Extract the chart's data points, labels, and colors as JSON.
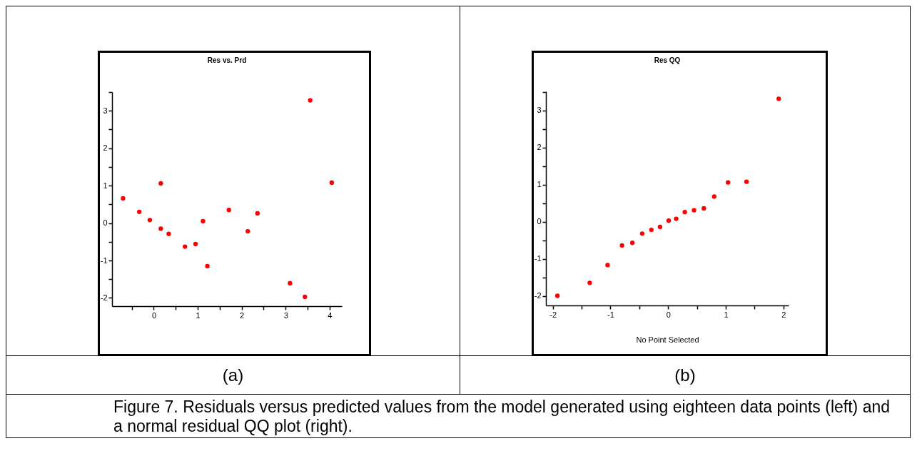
{
  "chart_data": [
    {
      "type": "scatter",
      "title": "Res vs. Prd",
      "x": [
        -0.7,
        -0.33,
        -0.09,
        0.16,
        0.16,
        0.34,
        0.71,
        0.95,
        1.12,
        1.22,
        1.71,
        2.14,
        2.36,
        3.1,
        3.44,
        3.56,
        4.05
      ],
      "series": [
        {
          "color": "#ff0000",
          "values": [
            0.66,
            0.3,
            0.08,
            1.06,
            -0.15,
            -0.29,
            -0.63,
            -0.56,
            0.05,
            -1.15,
            0.35,
            -0.22,
            0.26,
            -1.61,
            -1.97,
            3.28,
            1.08
          ]
        }
      ],
      "marker": "circle",
      "xlim": [
        -0.95,
        4.28
      ],
      "ylim": [
        -2.22,
        3.5
      ],
      "xticks": [
        {
          "value": -0.5,
          "label": null
        },
        0,
        {
          "value": 0.5,
          "label": null
        },
        1,
        {
          "value": 1.5,
          "label": null
        },
        2,
        {
          "value": 2.5,
          "label": null
        },
        3,
        {
          "value": 3.5,
          "label": null
        },
        4
      ],
      "yticks": [
        -2,
        {
          "value": -1.5,
          "label": null
        },
        -1,
        {
          "value": -0.5,
          "label": null
        },
        0,
        {
          "value": 0.5,
          "label": null
        },
        1,
        {
          "value": 1.5,
          "label": null
        },
        2,
        {
          "value": 2.5,
          "label": null
        },
        3,
        {
          "value": 3.5,
          "label": null
        }
      ],
      "annotations": [
        "(a)",
        "Figure 7. Residuals versus predicted values from the model generated using eighteen data points (left) and a normal residual QQ plot (right)."
      ]
    },
    {
      "type": "scatter",
      "title": "Res QQ",
      "xlabel": "No Point Selected",
      "x": [
        -1.92,
        -1.36,
        -1.05,
        -0.8,
        -0.62,
        -0.45,
        -0.29,
        -0.14,
        0.01,
        0.14,
        0.29,
        0.45,
        0.62,
        0.8,
        1.04,
        1.36,
        1.92
      ],
      "series": [
        {
          "color": "#ff0000",
          "values": [
            -2.0,
            -1.65,
            -1.17,
            -0.64,
            -0.57,
            -0.32,
            -0.22,
            -0.14,
            0.03,
            0.08,
            0.26,
            0.31,
            0.36,
            0.68,
            1.06,
            1.08,
            3.32
          ]
        }
      ],
      "marker": "circle",
      "xlim": [
        -2.12,
        2.09
      ],
      "ylim": [
        -2.26,
        3.52
      ],
      "xticks": [
        -2,
        {
          "value": -1.5,
          "label": null
        },
        -1,
        {
          "value": -0.5,
          "label": null
        },
        0,
        {
          "value": 0.5,
          "label": null
        },
        1,
        {
          "value": 1.5,
          "label": null
        },
        2
      ],
      "yticks": [
        -2,
        {
          "value": -1.5,
          "label": null
        },
        -1,
        {
          "value": -0.5,
          "label": null
        },
        0,
        {
          "value": 0.5,
          "label": null
        },
        1,
        {
          "value": 1.5,
          "label": null
        },
        2,
        {
          "value": 2.5,
          "label": null
        },
        3,
        {
          "value": 3.5,
          "label": null
        }
      ],
      "annotations": [
        "(b)"
      ]
    }
  ]
}
